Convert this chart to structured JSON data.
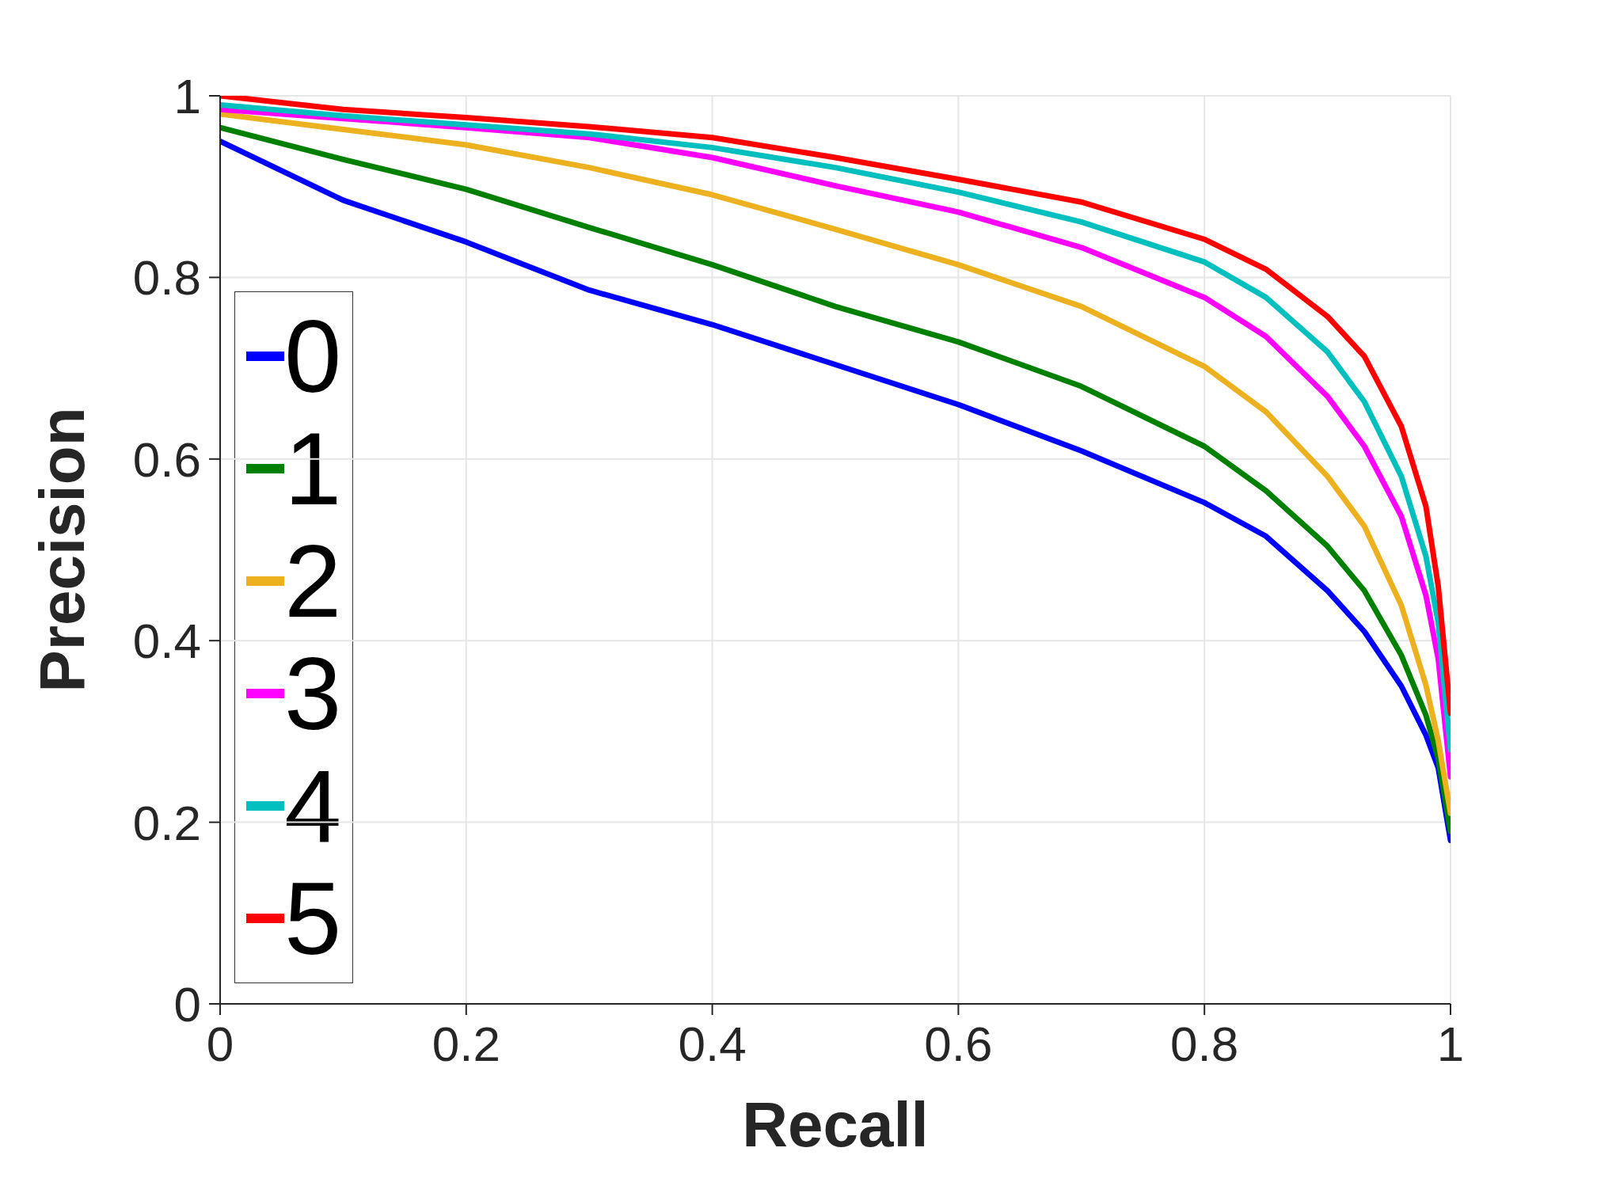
{
  "chart_data": {
    "type": "line",
    "xlabel": "Recall",
    "ylabel": "Precision",
    "x": [
      0,
      0.1,
      0.2,
      0.3,
      0.4,
      0.5,
      0.6,
      0.7,
      0.8,
      0.85,
      0.9,
      0.93,
      0.96,
      0.98,
      0.99,
      1
    ],
    "series": [
      {
        "name": "0",
        "color": "#0000ff",
        "values": [
          0.95,
          0.885,
          0.839,
          0.786,
          0.748,
          0.704,
          0.66,
          0.609,
          0.552,
          0.515,
          0.455,
          0.41,
          0.35,
          0.296,
          0.26,
          0.18
        ]
      },
      {
        "name": "1",
        "color": "#008000",
        "values": [
          0.965,
          0.93,
          0.897,
          0.855,
          0.814,
          0.768,
          0.729,
          0.68,
          0.614,
          0.565,
          0.504,
          0.455,
          0.384,
          0.318,
          0.27,
          0.19
        ]
      },
      {
        "name": "2",
        "color": "#edb120",
        "values": [
          0.98,
          0.963,
          0.946,
          0.921,
          0.891,
          0.853,
          0.814,
          0.768,
          0.702,
          0.652,
          0.581,
          0.526,
          0.439,
          0.351,
          0.29,
          0.21
        ]
      },
      {
        "name": "3",
        "color": "#ff00ff",
        "values": [
          0.985,
          0.975,
          0.965,
          0.954,
          0.932,
          0.901,
          0.872,
          0.833,
          0.778,
          0.735,
          0.669,
          0.614,
          0.537,
          0.45,
          0.38,
          0.25
        ]
      },
      {
        "name": "4",
        "color": "#00bfbf",
        "values": [
          0.99,
          0.978,
          0.968,
          0.958,
          0.943,
          0.921,
          0.894,
          0.861,
          0.817,
          0.778,
          0.718,
          0.663,
          0.581,
          0.493,
          0.42,
          0.28
        ]
      },
      {
        "name": "5",
        "color": "#ff0000",
        "values": [
          1.0,
          0.985,
          0.976,
          0.966,
          0.954,
          0.932,
          0.908,
          0.883,
          0.842,
          0.809,
          0.757,
          0.713,
          0.636,
          0.548,
          0.46,
          0.32
        ]
      }
    ],
    "xlim": [
      0,
      1
    ],
    "ylim": [
      0,
      1
    ],
    "xticks": [
      0,
      0.2,
      0.4,
      0.6,
      0.8,
      1
    ],
    "yticks": [
      0,
      0.2,
      0.4,
      0.6,
      0.8,
      1
    ],
    "grid": true,
    "legend": "bottom left",
    "marker": "none",
    "line_style": "solid"
  }
}
